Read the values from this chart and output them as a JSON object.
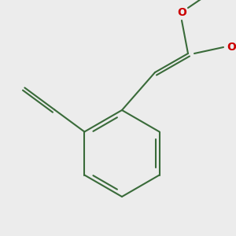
{
  "background_color": "#ececec",
  "bond_color": "#3a6b3a",
  "O_color": "#cc0000",
  "Si_color": "#b8860b",
  "line_width": 1.5,
  "font_size_atom": 10,
  "figsize": [
    3.0,
    3.0
  ],
  "dpi": 100,
  "xlim": [
    0,
    300
  ],
  "ylim": [
    0,
    300
  ]
}
